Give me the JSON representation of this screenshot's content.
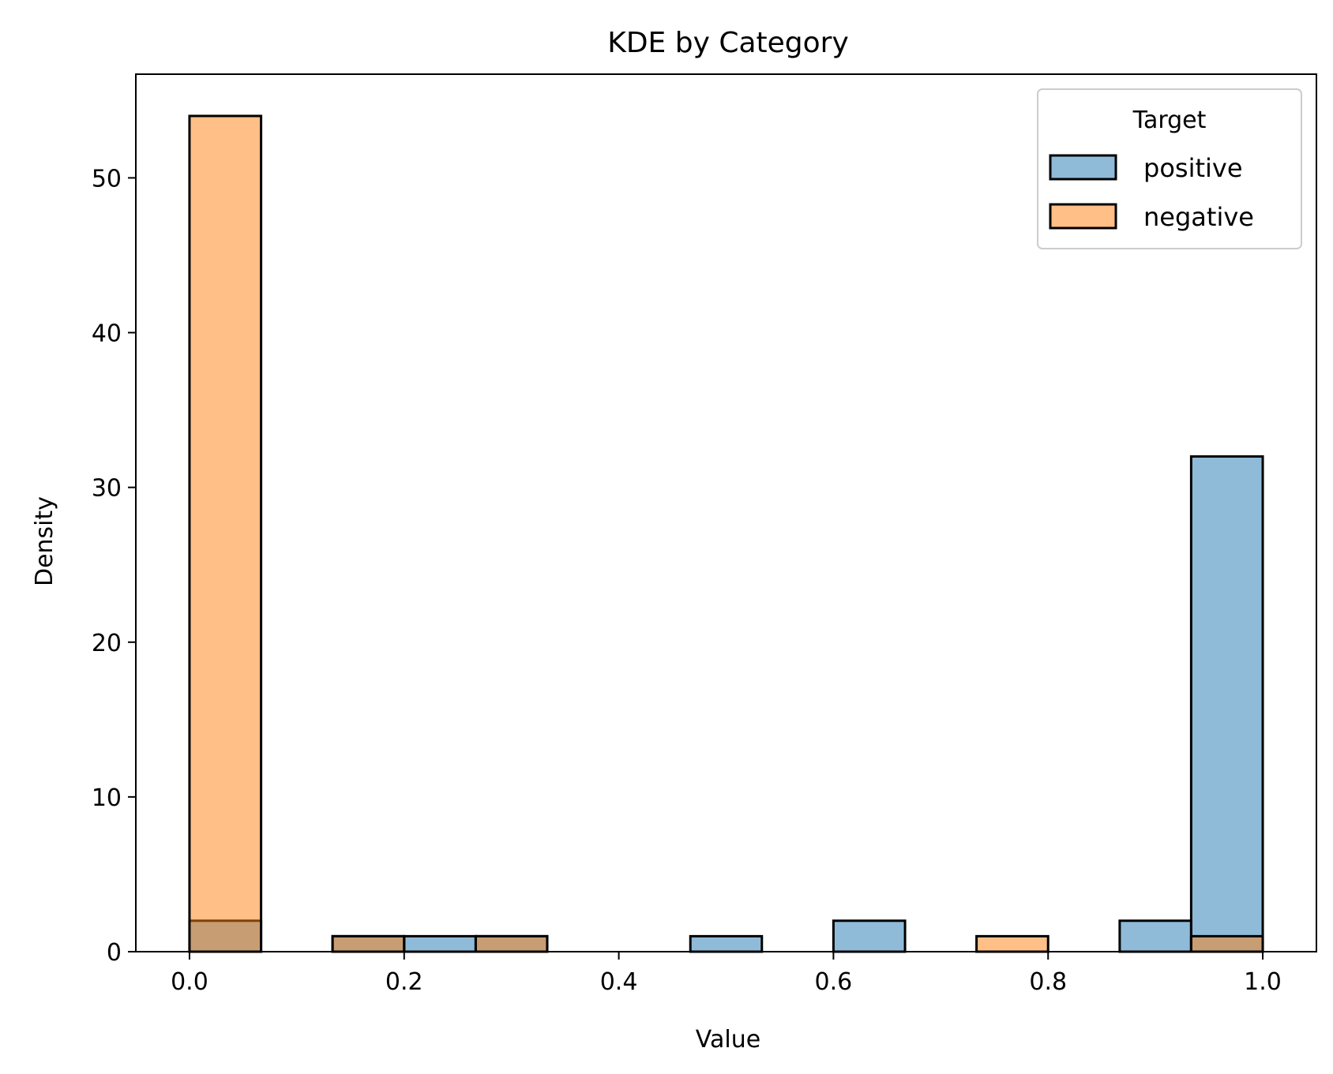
{
  "chart_data": {
    "type": "bar",
    "title": "KDE by Category",
    "xlabel": "Value",
    "ylabel": "Density",
    "xlim": [
      -0.05,
      1.05
    ],
    "ylim": [
      0,
      56.7
    ],
    "xticks": [
      0.0,
      0.2,
      0.4,
      0.6,
      0.8,
      1.0
    ],
    "xtick_labels": [
      "0.0",
      "0.2",
      "0.4",
      "0.6",
      "0.8",
      "1.0"
    ],
    "yticks": [
      0,
      10,
      20,
      30,
      40,
      50
    ],
    "ytick_labels": [
      "0",
      "10",
      "20",
      "30",
      "40",
      "50"
    ],
    "grid": false,
    "legend": {
      "title": "Target",
      "placement": "top-right"
    },
    "bin_edges": [
      0.0,
      0.0667,
      0.1333,
      0.2,
      0.2667,
      0.3333,
      0.4,
      0.4667,
      0.5333,
      0.6,
      0.6667,
      0.7333,
      0.8,
      0.8667,
      0.9333,
      1.0
    ],
    "series": [
      {
        "name": "positive",
        "color": "#1f77b4",
        "values": [
          2,
          0,
          1,
          1,
          1,
          0,
          0,
          1,
          0,
          2,
          0,
          0,
          0,
          2,
          32
        ]
      },
      {
        "name": "negative",
        "color": "#ff7f0e",
        "values": [
          54,
          0,
          1,
          0,
          1,
          0,
          0,
          0,
          0,
          0,
          0,
          1,
          0,
          0,
          1
        ]
      }
    ]
  }
}
